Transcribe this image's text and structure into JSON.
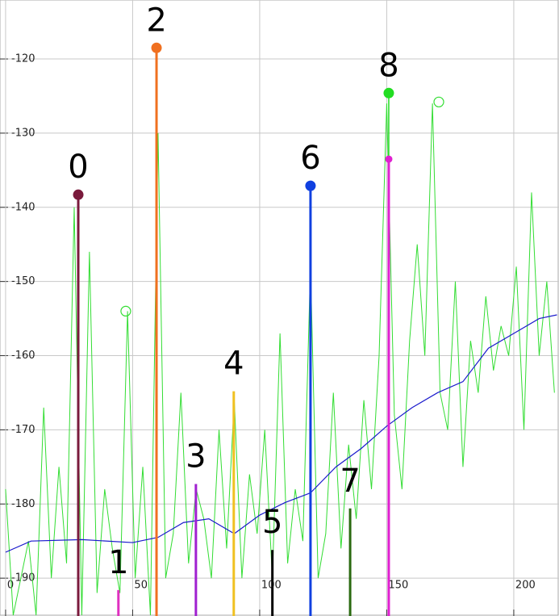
{
  "chart_data": {
    "type": "line",
    "xlim": [
      -2.2,
      217.8
    ],
    "ylim": [
      -195.1,
      -112.05
    ],
    "xticks": [
      0,
      50,
      100,
      150,
      200
    ],
    "yticks": [
      -190,
      -180,
      -170,
      -160,
      -150,
      -140,
      -130,
      -120
    ],
    "grid": true,
    "x": [
      0,
      3,
      6,
      9,
      12,
      15,
      18,
      21,
      24,
      27,
      30,
      33,
      36,
      39,
      42,
      45,
      48,
      51,
      54,
      57,
      60,
      63,
      66,
      69,
      72,
      75,
      78,
      81,
      84,
      87,
      90,
      93,
      96,
      99,
      102,
      105,
      108,
      111,
      114,
      117,
      120,
      123,
      126,
      129,
      132,
      135,
      138,
      141,
      144,
      147,
      150,
      153,
      156,
      159,
      162,
      165,
      168,
      171,
      174,
      177,
      180,
      183,
      186,
      189,
      192,
      195,
      198,
      201,
      204,
      207,
      210,
      213,
      216
    ],
    "series": [
      {
        "color": "#33dd33",
        "values": [
          -178,
          -195,
          -190,
          -185,
          -195,
          -167,
          -190,
          -175,
          -188,
          -140,
          -195,
          -146,
          -192,
          -178,
          -186,
          -192,
          -154,
          -190,
          -175,
          -195,
          -130,
          -190,
          -184,
          -165,
          -188,
          -178,
          -182,
          -190,
          -170,
          -186,
          -166,
          -190,
          -176,
          -184,
          -170,
          -190,
          -157,
          -188,
          -178,
          -185,
          -148,
          -190,
          -184,
          -165,
          -186,
          -172,
          -182,
          -166,
          -178,
          -160,
          -126,
          -168,
          -178,
          -158,
          -145,
          -160,
          -126,
          -165,
          -170,
          -150,
          -175,
          -158,
          -165,
          -152,
          -162,
          -156,
          -160,
          -148,
          -170,
          -138,
          -160,
          -150,
          -165
        ]
      },
      {
        "color": "#1a1acc",
        "x": [
          0,
          10,
          30,
          50,
          60,
          70,
          80,
          90,
          100,
          110,
          120,
          130,
          140,
          150,
          160,
          170,
          180,
          190,
          200,
          210,
          217
        ],
        "values": [
          -186.5,
          -185,
          -184.8,
          -185.2,
          -184.5,
          -182.5,
          -182,
          -184,
          -181.5,
          -179.8,
          -178.5,
          -175,
          -172.5,
          -169.5,
          -167,
          -165,
          -163.5,
          -159,
          -157,
          -155,
          -154.5
        ]
      }
    ],
    "open_points": {
      "color": "#33dd33",
      "x": [
        47.3,
        170.5
      ],
      "values": [
        -154,
        -125.8
      ]
    },
    "markers": [
      {
        "label": "0",
        "x": 28.6,
        "value": -138.3,
        "color": "#7a1a3c",
        "marker": true
      },
      {
        "label": "1",
        "x": 44.4,
        "value": -191.6,
        "color": "#e030c0",
        "marker": false
      },
      {
        "label": "2",
        "x": 59.4,
        "value": -118.5,
        "color": "#f07020",
        "marker": true
      },
      {
        "label": "3",
        "x": 74.9,
        "value": -177.3,
        "color": "#a020d0",
        "marker": false
      },
      {
        "label": "4",
        "x": 89.8,
        "value": -164.8,
        "color": "#f0c020",
        "marker": false
      },
      {
        "label": "5",
        "x": 105,
        "value": -186.2,
        "color": "#000000",
        "marker": false
      },
      {
        "label": "6",
        "x": 120,
        "value": -137.1,
        "color": "#1040e0",
        "marker": true
      },
      {
        "label": "7",
        "x": 135.6,
        "value": -180.6,
        "color": "#2a6a10",
        "marker": false
      },
      {
        "label": "8",
        "x": 150.8,
        "value": -124.6,
        "color": "#e020d0",
        "marker": true,
        "marker_color": "#22dd22",
        "stem_top": -133.5
      }
    ]
  }
}
